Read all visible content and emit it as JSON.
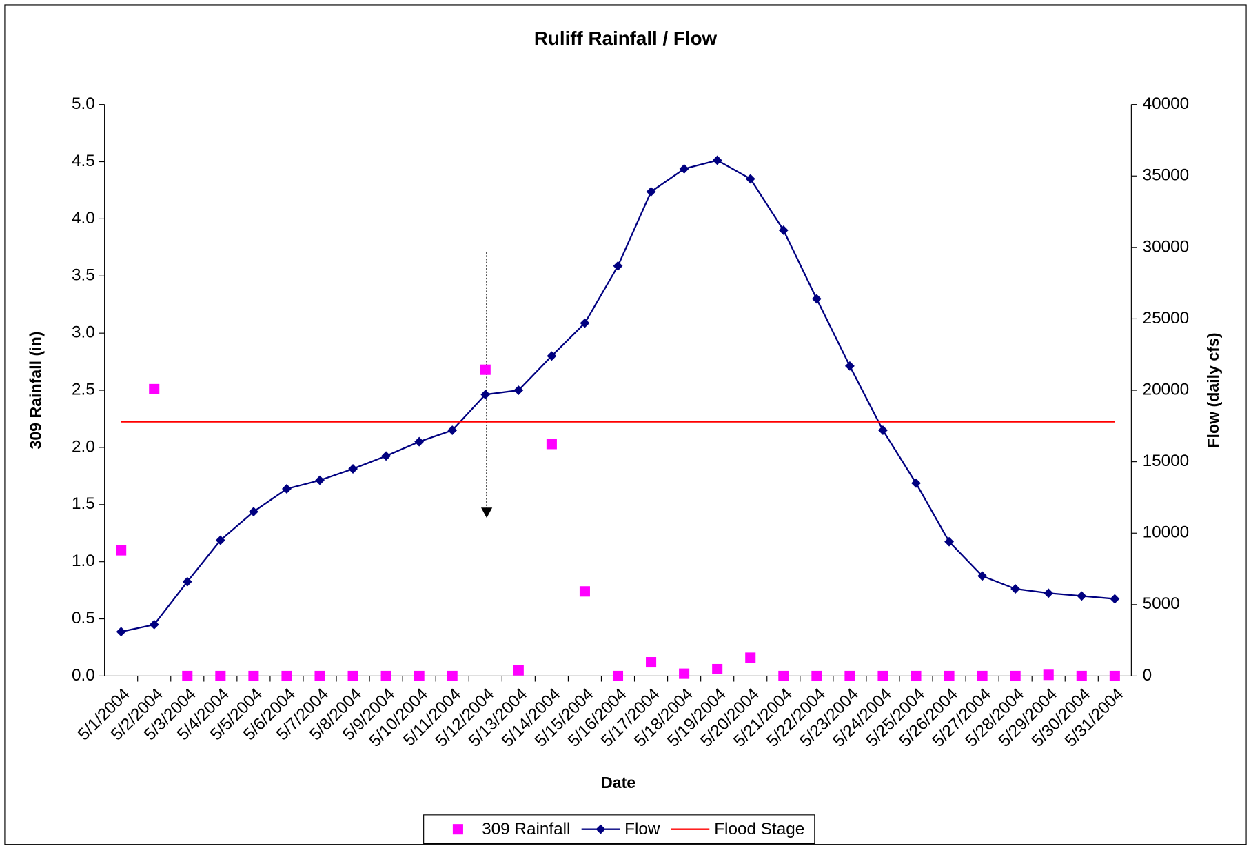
{
  "chart_data": {
    "type": "line",
    "title": "Ruliff Rainfall / Flow",
    "x_label": "Date",
    "y_label": "309 Rainfall (in)",
    "y2_label": "Flow (daily cfs)",
    "categories": [
      "5/1/2004",
      "5/2/2004",
      "5/3/2004",
      "5/4/2004",
      "5/5/2004",
      "5/6/2004",
      "5/7/2004",
      "5/8/2004",
      "5/9/2004",
      "5/10/2004",
      "5/11/2004",
      "5/12/2004",
      "5/13/2004",
      "5/14/2004",
      "5/15/2004",
      "5/16/2004",
      "5/17/2004",
      "5/18/2004",
      "5/19/2004",
      "5/20/2004",
      "5/21/2004",
      "5/22/2004",
      "5/23/2004",
      "5/24/2004",
      "5/25/2004",
      "5/26/2004",
      "5/27/2004",
      "5/28/2004",
      "5/29/2004",
      "5/30/2004",
      "5/31/2004"
    ],
    "series": [
      {
        "name": "309 Rainfall",
        "color": "#ff00ff",
        "mode": "markers",
        "marker": "square",
        "axis": "y",
        "values": [
          1.1,
          2.51,
          0,
          0,
          0,
          0,
          0,
          0,
          0,
          0,
          0,
          2.68,
          0.05,
          2.03,
          0.74,
          0,
          0.12,
          0.02,
          0.06,
          0.16,
          0,
          0,
          0,
          0,
          0,
          0,
          0,
          0,
          0.01,
          0,
          0
        ]
      },
      {
        "name": "Flow",
        "color": "#000080",
        "mode": "lines+markers",
        "marker": "diamond",
        "axis": "y2",
        "values": [
          3100,
          3600,
          6600,
          9500,
          11500,
          13100,
          13700,
          14500,
          15400,
          16400,
          17200,
          19700,
          20000,
          22400,
          24700,
          28700,
          33900,
          35500,
          36100,
          34800,
          31200,
          26400,
          21700,
          17200,
          13500,
          9400,
          7000,
          6100,
          5800,
          5600,
          5400
        ]
      },
      {
        "name": "Flood Stage",
        "color": "#ff0000",
        "mode": "lines",
        "axis": "y2",
        "values": [
          17800,
          17800,
          17800,
          17800,
          17800,
          17800,
          17800,
          17800,
          17800,
          17800,
          17800,
          17800,
          17800,
          17800,
          17800,
          17800,
          17800,
          17800,
          17800,
          17800,
          17800,
          17800,
          17800,
          17800,
          17800,
          17800,
          17800,
          17800,
          17800,
          17800,
          17800
        ]
      }
    ],
    "ylim": [
      0,
      5
    ],
    "yticks": [
      {
        "value": 0,
        "label": "0.0"
      },
      0.5,
      {
        "value": 1,
        "label": "1.0"
      },
      1.5,
      {
        "value": 2,
        "label": "2.0"
      },
      2.5,
      {
        "value": 3,
        "label": "3.0"
      },
      3.5,
      {
        "value": 4,
        "label": "4.0"
      },
      4.5,
      {
        "value": 5,
        "label": "5.0"
      }
    ],
    "y2lim": [
      0,
      40000
    ],
    "y2ticks": [
      0,
      5000,
      10000,
      15000,
      20000,
      25000,
      30000,
      35000,
      40000
    ],
    "grid": false,
    "legend": "bottom"
  }
}
